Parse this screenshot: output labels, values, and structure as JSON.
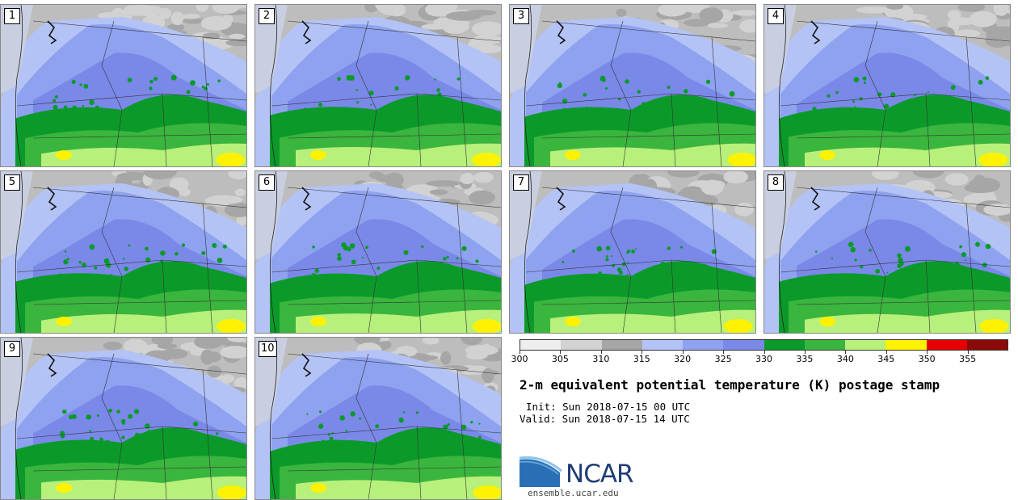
{
  "panels": [
    {
      "label": "1"
    },
    {
      "label": "2"
    },
    {
      "label": "3"
    },
    {
      "label": "4"
    },
    {
      "label": "5"
    },
    {
      "label": "6"
    },
    {
      "label": "7"
    },
    {
      "label": "8"
    },
    {
      "label": "9"
    },
    {
      "label": "10"
    }
  ],
  "colorbar": {
    "ticks": [
      "300",
      "305",
      "310",
      "315",
      "320",
      "325",
      "330",
      "335",
      "340",
      "345",
      "350",
      "355"
    ],
    "colors": [
      "#eeeeee",
      "#d2d2d2",
      "#a6a6a6",
      "#b4c3f5",
      "#8ea2f0",
      "#7a88e8",
      "#0b9a2a",
      "#3ab53e",
      "#b7f07a",
      "#fff200",
      "#e60000",
      "#8a0a0a"
    ]
  },
  "title": "2-m equivalent potential temperature (K) postage stamp",
  "init_line": "Init: Sun 2018-07-15 00 UTC",
  "valid_line": "Valid: Sun 2018-07-15 14 UTC",
  "logo": {
    "name": "NCAR",
    "url": "ensemble.ucar.edu"
  }
}
